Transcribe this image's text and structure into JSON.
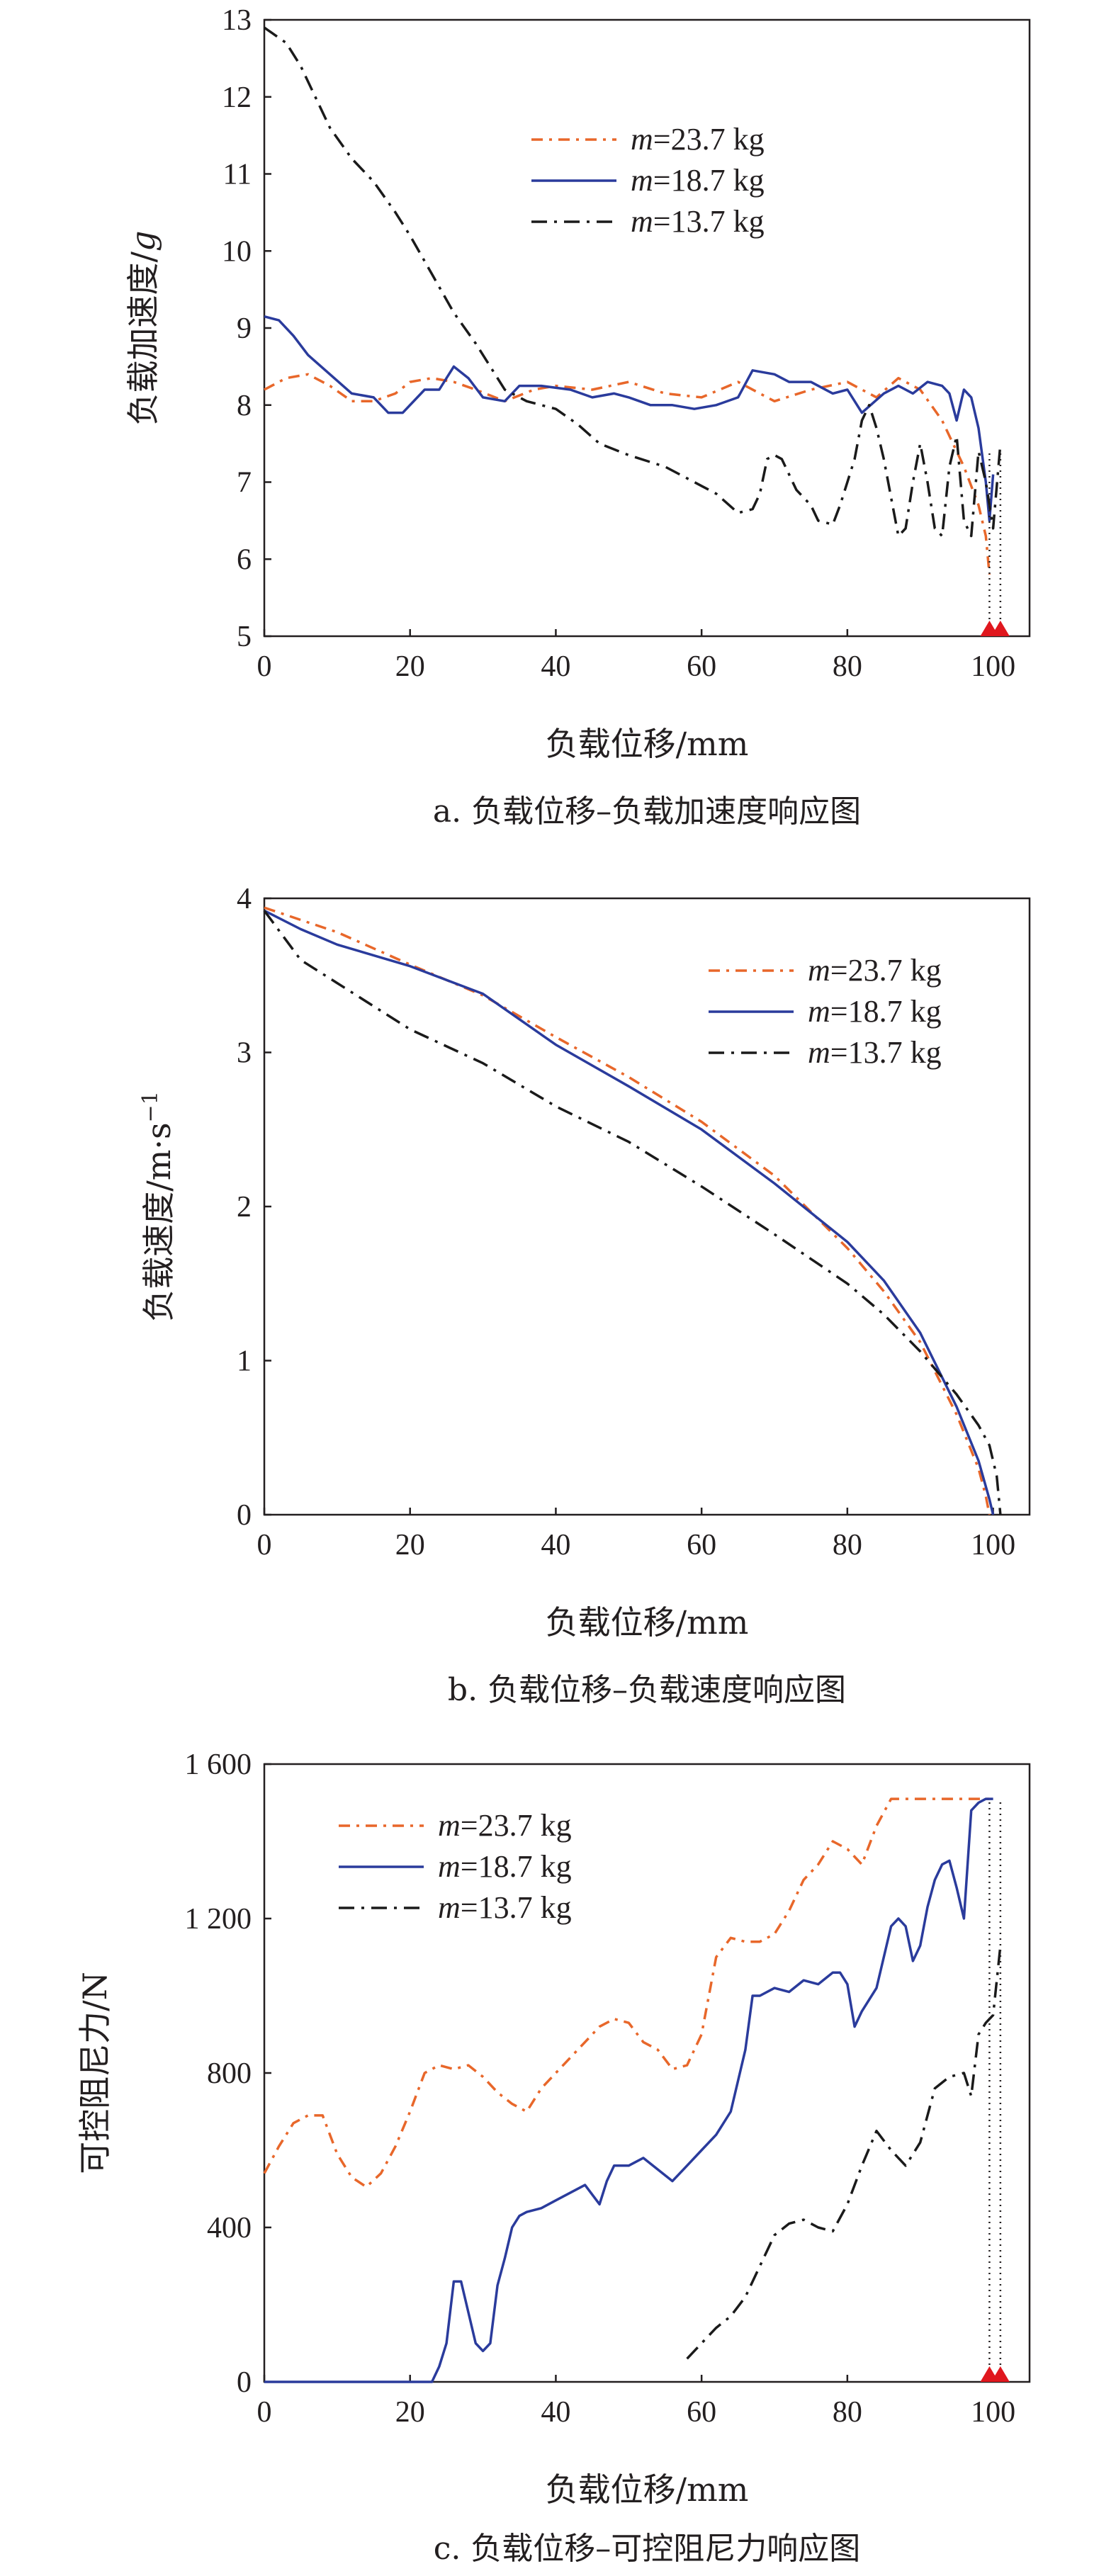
{
  "colors": {
    "m23_7": "#e8672a",
    "m18_7": "#2a3b9c",
    "m13_7": "#1a1a1a",
    "marker": "#e0171e",
    "axis": "#231f20"
  },
  "legend_entries": [
    {
      "key": "m23_7",
      "italic": "m",
      "text": "=23.7 kg",
      "dash": "dashdot-long"
    },
    {
      "key": "m18_7",
      "italic": "m",
      "text": "=18.7 kg",
      "dash": "solid"
    },
    {
      "key": "m13_7",
      "italic": "m",
      "text": "=13.7 kg",
      "dash": "dashdot"
    }
  ],
  "chart_data": [
    {
      "type": "line",
      "caption": "a. 负载位移–负载加速度响应图",
      "xlabel": "负载位移/mm",
      "ylabel_prefix": "负载加速度/",
      "ylabel_italic": "g",
      "xlim": [
        0,
        105
      ],
      "ylim": [
        5,
        13
      ],
      "xticks": [
        "0",
        "20",
        "40",
        "60",
        "80",
        "100"
      ],
      "xtick_values": [
        0,
        20,
        40,
        60,
        80,
        100
      ],
      "yticks": [
        "5",
        "6",
        "7",
        "8",
        "9",
        "10",
        "11",
        "12",
        "13"
      ],
      "ytick_values": [
        5,
        6,
        7,
        8,
        9,
        10,
        11,
        12,
        13
      ],
      "legend_position": "top-center",
      "markers": [
        {
          "x": 99.5,
          "y": 5
        },
        {
          "x": 101,
          "y": 5
        }
      ],
      "series": [
        {
          "name": "m=23.7 kg",
          "key": "m23_7",
          "dash": "dashdot-long",
          "x": [
            0,
            3,
            6,
            9,
            12,
            15,
            18,
            20,
            23,
            26,
            29,
            33,
            37,
            40,
            45,
            50,
            55,
            60,
            65,
            70,
            75,
            80,
            84,
            87,
            90,
            93,
            96,
            98,
            99,
            99.5
          ],
          "y": [
            8.2,
            8.35,
            8.4,
            8.25,
            8.05,
            8.05,
            8.15,
            8.3,
            8.35,
            8.3,
            8.2,
            8.05,
            8.2,
            8.25,
            8.2,
            8.3,
            8.15,
            8.1,
            8.3,
            8.05,
            8.2,
            8.3,
            8.1,
            8.35,
            8.2,
            7.8,
            7.2,
            6.7,
            6.3,
            5.8
          ]
        },
        {
          "name": "m=18.7 kg",
          "key": "m18_7",
          "dash": "solid",
          "x": [
            0,
            2,
            4,
            6,
            9,
            12,
            15,
            17,
            19,
            22,
            24,
            26,
            28,
            30,
            33,
            35,
            38,
            42,
            45,
            48,
            50,
            53,
            56,
            59,
            62,
            65,
            67,
            70,
            72,
            75,
            78,
            80,
            82,
            85,
            87,
            89,
            91,
            93,
            94,
            95,
            96,
            97,
            98,
            99,
            99.5,
            100
          ],
          "y": [
            9.15,
            9.1,
            8.9,
            8.65,
            8.4,
            8.15,
            8.1,
            7.9,
            7.9,
            8.2,
            8.2,
            8.5,
            8.35,
            8.1,
            8.05,
            8.25,
            8.25,
            8.2,
            8.1,
            8.15,
            8.1,
            8.0,
            8.0,
            7.95,
            8.0,
            8.1,
            8.45,
            8.4,
            8.3,
            8.3,
            8.15,
            8.2,
            7.9,
            8.15,
            8.25,
            8.15,
            8.3,
            8.25,
            8.15,
            7.8,
            8.2,
            8.1,
            7.7,
            7.0,
            6.5,
            7.1
          ]
        },
        {
          "name": "m=13.7 kg",
          "key": "m13_7",
          "dash": "dashdot",
          "x": [
            0,
            3,
            5,
            7,
            9,
            12,
            15,
            18,
            20,
            23,
            26,
            29,
            31,
            33,
            36,
            40,
            43,
            46,
            50,
            55,
            58,
            60,
            62,
            65,
            67,
            68,
            69,
            70,
            71,
            72,
            73,
            74,
            75,
            76,
            78,
            79,
            80,
            81,
            82,
            83,
            84,
            85,
            86,
            87,
            88,
            89,
            90,
            91,
            92,
            93,
            94,
            95,
            96,
            97,
            98,
            99,
            100,
            101
          ],
          "y": [
            12.9,
            12.7,
            12.4,
            12.0,
            11.6,
            11.2,
            10.9,
            10.5,
            10.2,
            9.7,
            9.2,
            8.8,
            8.5,
            8.2,
            8.05,
            7.95,
            7.75,
            7.5,
            7.35,
            7.2,
            7.05,
            6.95,
            6.85,
            6.6,
            6.65,
            6.85,
            7.3,
            7.35,
            7.3,
            7.1,
            6.9,
            6.8,
            6.7,
            6.5,
            6.45,
            6.7,
            7.0,
            7.3,
            7.8,
            8.0,
            7.7,
            7.3,
            6.8,
            6.3,
            6.4,
            7.0,
            7.5,
            7.0,
            6.4,
            6.3,
            7.2,
            7.6,
            6.5,
            6.3,
            7.4,
            7.0,
            6.4,
            7.5
          ]
        }
      ]
    },
    {
      "type": "line",
      "caption": "b. 负载位移–负载速度响应图",
      "xlabel": "负载位移/mm",
      "ylabel_prefix": "负载速度/m·s",
      "ylabel_sup": "−1",
      "xlim": [
        0,
        105
      ],
      "ylim": [
        0,
        4
      ],
      "xticks": [
        "0",
        "20",
        "40",
        "60",
        "80",
        "100"
      ],
      "xtick_values": [
        0,
        20,
        40,
        60,
        80,
        100
      ],
      "yticks": [
        "0",
        "1",
        "2",
        "3",
        "4"
      ],
      "ytick_values": [
        0,
        1,
        2,
        3,
        4
      ],
      "legend_position": "top-right",
      "markers": [],
      "series": [
        {
          "name": "m=23.7 kg",
          "key": "m23_7",
          "dash": "dashdot-long",
          "x": [
            0,
            10,
            20,
            30,
            40,
            50,
            60,
            70,
            80,
            85,
            90,
            95,
            98,
            99,
            99.5
          ],
          "y": [
            3.94,
            3.78,
            3.57,
            3.37,
            3.1,
            2.84,
            2.55,
            2.2,
            1.73,
            1.45,
            1.12,
            0.65,
            0.3,
            0.12,
            0.0
          ]
        },
        {
          "name": "m=18.7 kg",
          "key": "m18_7",
          "dash": "solid",
          "x": [
            0,
            5,
            10,
            20,
            30,
            40,
            50,
            60,
            70,
            80,
            85,
            90,
            95,
            98,
            99.5,
            100
          ],
          "y": [
            3.92,
            3.8,
            3.7,
            3.56,
            3.38,
            3.05,
            2.78,
            2.5,
            2.15,
            1.77,
            1.52,
            1.18,
            0.7,
            0.35,
            0.1,
            0.0
          ]
        },
        {
          "name": "m=13.7 kg",
          "key": "m13_7",
          "dash": "dashdot",
          "x": [
            0,
            5,
            10,
            20,
            30,
            40,
            50,
            60,
            70,
            80,
            85,
            90,
            95,
            98,
            99.5,
            100.5,
            101
          ],
          "y": [
            3.92,
            3.6,
            3.45,
            3.15,
            2.93,
            2.65,
            2.42,
            2.13,
            1.82,
            1.5,
            1.3,
            1.06,
            0.78,
            0.58,
            0.45,
            0.25,
            0.0
          ]
        }
      ]
    },
    {
      "type": "line",
      "caption": "c. 负载位移–可控阻尼力响应图",
      "xlabel": "负载位移/mm",
      "ylabel_prefix": "可控阻尼力/N",
      "xlim": [
        0,
        105
      ],
      "ylim": [
        0,
        1600
      ],
      "xticks": [
        "0",
        "20",
        "40",
        "60",
        "80",
        "100"
      ],
      "xtick_values": [
        0,
        20,
        40,
        60,
        80,
        100
      ],
      "yticks": [
        "0",
        "400",
        "800",
        "1 200",
        "1 600"
      ],
      "ytick_values": [
        0,
        400,
        800,
        1200,
        1600
      ],
      "legend_position": "top-left",
      "markers": [
        {
          "x": 99.5,
          "y": 0
        },
        {
          "x": 101,
          "y": 0
        }
      ],
      "series": [
        {
          "name": "m=23.7 kg",
          "key": "m23_7",
          "dash": "dashdot-long",
          "x": [
            0,
            2,
            4,
            6,
            8,
            10,
            12,
            14,
            16,
            18,
            20,
            22,
            24,
            26,
            28,
            30,
            32,
            34,
            36,
            38,
            40,
            42,
            44,
            46,
            48,
            50,
            52,
            54,
            56,
            58,
            60,
            62,
            64,
            66,
            68,
            70,
            72,
            74,
            76,
            78,
            80,
            82,
            84,
            86,
            90,
            95,
            99.5
          ],
          "y": [
            540,
            610,
            670,
            690,
            690,
            590,
            530,
            505,
            540,
            610,
            700,
            800,
            820,
            810,
            820,
            790,
            750,
            720,
            700,
            760,
            800,
            840,
            880,
            920,
            940,
            930,
            880,
            860,
            810,
            820,
            900,
            1100,
            1150,
            1140,
            1140,
            1160,
            1220,
            1300,
            1340,
            1400,
            1380,
            1340,
            1440,
            1510,
            1510,
            1510,
            1510
          ]
        },
        {
          "name": "m=18.7 kg",
          "key": "m18_7",
          "dash": "solid",
          "x": [
            0,
            23,
            24,
            25,
            26,
            27,
            28,
            29,
            30,
            31,
            32,
            33,
            34,
            35,
            36,
            38,
            40,
            42,
            44,
            46,
            47,
            48,
            50,
            52,
            54,
            56,
            58,
            60,
            62,
            64,
            66,
            67,
            68,
            70,
            72,
            74,
            76,
            78,
            79,
            80,
            81,
            82,
            84,
            86,
            87,
            88,
            89,
            90,
            91,
            92,
            93,
            94,
            95,
            96,
            97,
            98,
            99,
            100
          ],
          "y": [
            0,
            0,
            40,
            100,
            260,
            260,
            180,
            100,
            80,
            100,
            250,
            320,
            400,
            430,
            440,
            450,
            470,
            490,
            510,
            460,
            520,
            560,
            560,
            580,
            550,
            520,
            560,
            600,
            640,
            700,
            860,
            1000,
            1000,
            1020,
            1010,
            1040,
            1030,
            1060,
            1060,
            1030,
            920,
            960,
            1020,
            1180,
            1200,
            1180,
            1090,
            1130,
            1230,
            1300,
            1340,
            1350,
            1280,
            1200,
            1480,
            1500,
            1510,
            1510
          ]
        },
        {
          "name": "m=13.7 kg",
          "key": "m13_7",
          "dash": "dashdot",
          "x": [
            58,
            60,
            62,
            64,
            66,
            68,
            70,
            72,
            74,
            76,
            78,
            80,
            82,
            84,
            86,
            88,
            90,
            92,
            94,
            96,
            97,
            98,
            99,
            100,
            101
          ],
          "y": [
            60,
            100,
            140,
            170,
            220,
            300,
            380,
            410,
            420,
            400,
            390,
            460,
            560,
            650,
            600,
            560,
            620,
            760,
            790,
            800,
            740,
            900,
            930,
            950,
            1130
          ]
        }
      ]
    }
  ]
}
